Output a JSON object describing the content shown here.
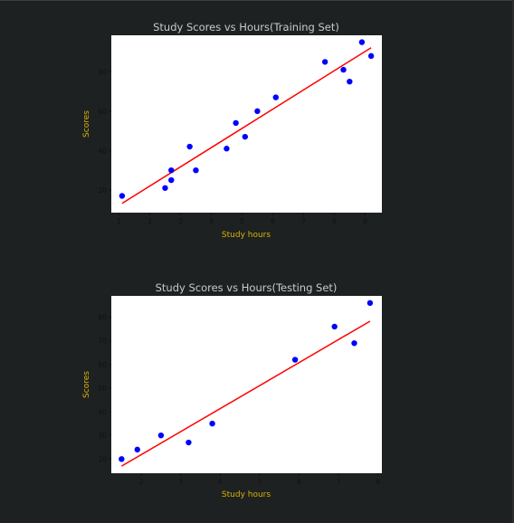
{
  "chart_data": [
    {
      "type": "scatter",
      "title": "Study Scores vs Hours(Training Set)",
      "xlabel": "Study hours",
      "ylabel": "Scores",
      "xlim": [
        0.75,
        9.55
      ],
      "ylim": [
        8.5,
        98.5
      ],
      "xticks": [
        1,
        2,
        3,
        4,
        5,
        6,
        7,
        8,
        9
      ],
      "yticks": [
        20,
        40,
        60,
        80
      ],
      "colors": {
        "points": "#0000ff",
        "line": "#ff0000",
        "title": "#c8cbcc",
        "axis_label": "#d9b300"
      },
      "points": [
        {
          "x": 1.1,
          "y": 17
        },
        {
          "x": 2.5,
          "y": 21
        },
        {
          "x": 2.7,
          "y": 25
        },
        {
          "x": 2.7,
          "y": 30
        },
        {
          "x": 3.3,
          "y": 42
        },
        {
          "x": 3.5,
          "y": 30
        },
        {
          "x": 4.5,
          "y": 41
        },
        {
          "x": 4.8,
          "y": 54
        },
        {
          "x": 5.1,
          "y": 47
        },
        {
          "x": 5.5,
          "y": 60
        },
        {
          "x": 6.1,
          "y": 67
        },
        {
          "x": 7.7,
          "y": 85
        },
        {
          "x": 8.3,
          "y": 81
        },
        {
          "x": 8.5,
          "y": 75
        },
        {
          "x": 8.9,
          "y": 95
        },
        {
          "x": 9.2,
          "y": 88
        }
      ],
      "regression_line": [
        {
          "x": 1.1,
          "y": 13.2
        },
        {
          "x": 9.2,
          "y": 92.2
        }
      ]
    },
    {
      "type": "scatter",
      "title": "Study Scores vs Hours(Testing Set)",
      "xlabel": "Study hours",
      "ylabel": "Scores",
      "xlim": [
        1.24,
        8.1
      ],
      "ylim": [
        14,
        89
      ],
      "xticks": [
        2,
        3,
        4,
        5,
        6,
        7,
        8
      ],
      "yticks": [
        20,
        30,
        40,
        50,
        60,
        70,
        80
      ],
      "colors": {
        "points": "#0000ff",
        "line": "#ff0000",
        "title": "#c8cbcc",
        "axis_label": "#d9b300"
      },
      "points": [
        {
          "x": 1.5,
          "y": 20
        },
        {
          "x": 1.9,
          "y": 24
        },
        {
          "x": 2.5,
          "y": 30
        },
        {
          "x": 3.2,
          "y": 27
        },
        {
          "x": 3.8,
          "y": 35
        },
        {
          "x": 5.9,
          "y": 62
        },
        {
          "x": 6.9,
          "y": 76
        },
        {
          "x": 7.4,
          "y": 69
        },
        {
          "x": 7.8,
          "y": 86
        }
      ],
      "regression_line": [
        {
          "x": 1.5,
          "y": 17.0
        },
        {
          "x": 7.8,
          "y": 78.3
        }
      ]
    }
  ]
}
